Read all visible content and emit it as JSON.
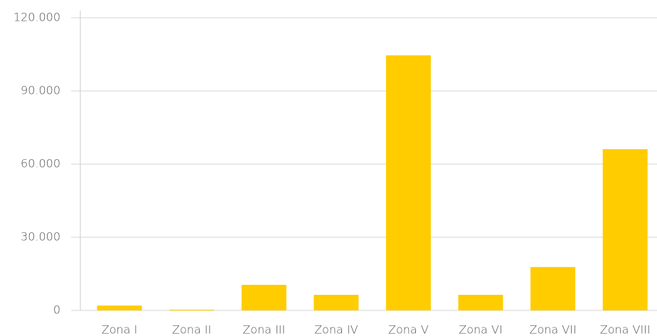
{
  "chart_data": {
    "type": "bar",
    "categories": [
      "Zona I",
      "Zona II",
      "Zona III",
      "Zona IV",
      "Zona V",
      "Zona VI",
      "Zona VII",
      "Zona VIII"
    ],
    "values": [
      2000,
      300,
      10500,
      6400,
      104600,
      6400,
      17800,
      66100
    ],
    "color": "#ffcc00",
    "ylim": [
      0,
      120000
    ],
    "yticks": [
      0,
      {
        "value": 30000,
        "label": "30.000"
      },
      {
        "value": 60000,
        "label": "60.000"
      },
      {
        "value": 90000,
        "label": "90.000"
      },
      {
        "value": 120000,
        "label": "120.000"
      }
    ],
    "grid": true
  }
}
